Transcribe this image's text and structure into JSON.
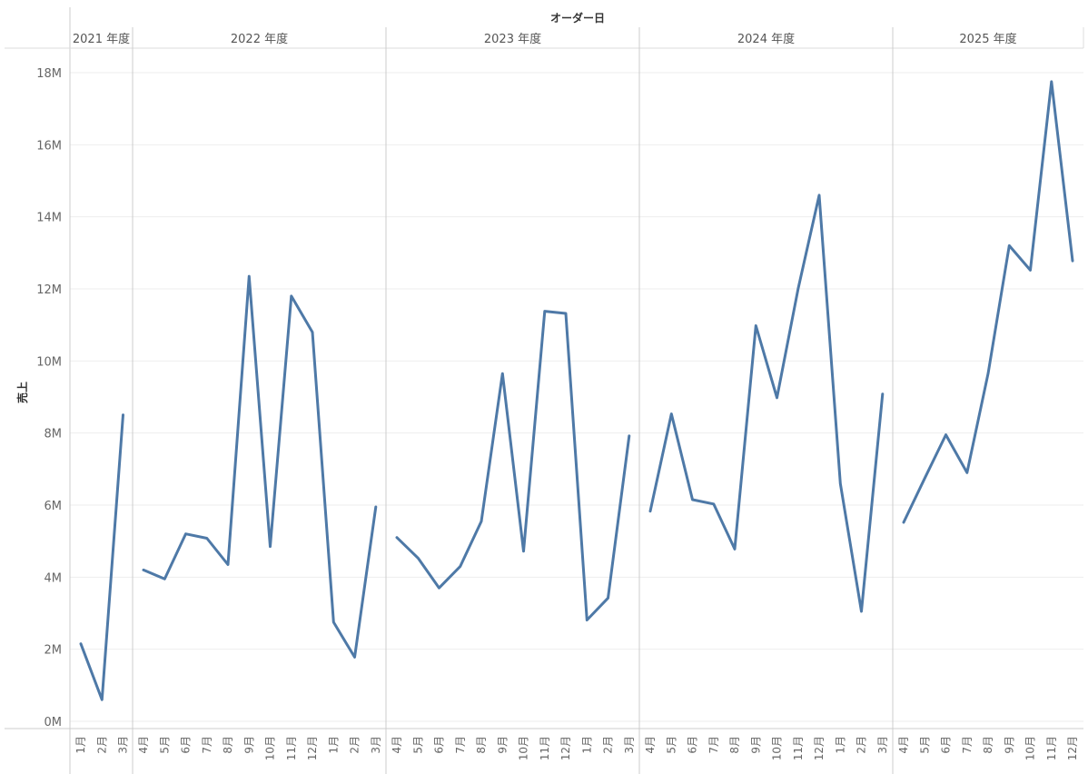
{
  "chart_data": {
    "type": "line",
    "title": "オーダー日",
    "ylabel": "売上",
    "ylim": [
      0,
      18500000
    ],
    "y_ticks": [
      {
        "value": 0,
        "label": "0M"
      },
      {
        "value": 2000000,
        "label": "2M"
      },
      {
        "value": 4000000,
        "label": "4M"
      },
      {
        "value": 6000000,
        "label": "6M"
      },
      {
        "value": 8000000,
        "label": "8M"
      },
      {
        "value": 10000000,
        "label": "10M"
      },
      {
        "value": 12000000,
        "label": "12M"
      },
      {
        "value": 14000000,
        "label": "14M"
      },
      {
        "value": 16000000,
        "label": "16M"
      },
      {
        "value": 18000000,
        "label": "18M"
      }
    ],
    "grid": true,
    "years": [
      {
        "label": "2021 年度",
        "months": [
          "1月",
          "2月",
          "3月"
        ],
        "values": [
          2150000,
          600000,
          8500000
        ]
      },
      {
        "label": "2022 年度",
        "months": [
          "4月",
          "5月",
          "6月",
          "7月",
          "8月",
          "9月",
          "10月",
          "11月",
          "12月",
          "1月",
          "2月",
          "3月"
        ],
        "values": [
          4200000,
          3950000,
          5200000,
          5080000,
          4350000,
          12350000,
          4850000,
          11800000,
          10800000,
          2750000,
          1780000,
          5950000
        ]
      },
      {
        "label": "2023 年度",
        "months": [
          "4月",
          "5月",
          "6月",
          "7月",
          "8月",
          "9月",
          "10月",
          "11月",
          "12月",
          "1月",
          "2月",
          "3月"
        ],
        "values": [
          5100000,
          4530000,
          3700000,
          4300000,
          5550000,
          9650000,
          4720000,
          11380000,
          11320000,
          2810000,
          3420000,
          7920000
        ]
      },
      {
        "label": "2024 年度",
        "months": [
          "4月",
          "5月",
          "6月",
          "7月",
          "8月",
          "9月",
          "10月",
          "11月",
          "12月",
          "1月",
          "2月",
          "3月"
        ],
        "values": [
          5830000,
          8530000,
          6150000,
          6030000,
          4780000,
          10980000,
          8980000,
          12000000,
          14600000,
          6600000,
          3050000,
          9080000
        ]
      },
      {
        "label": "2025 年度",
        "months": [
          "4月",
          "5月",
          "6月",
          "7月",
          "8月",
          "9月",
          "10月",
          "11月",
          "12月"
        ],
        "values": [
          5520000,
          6750000,
          7950000,
          6900000,
          9650000,
          13200000,
          12520000,
          17750000,
          12780000
        ]
      }
    ]
  }
}
